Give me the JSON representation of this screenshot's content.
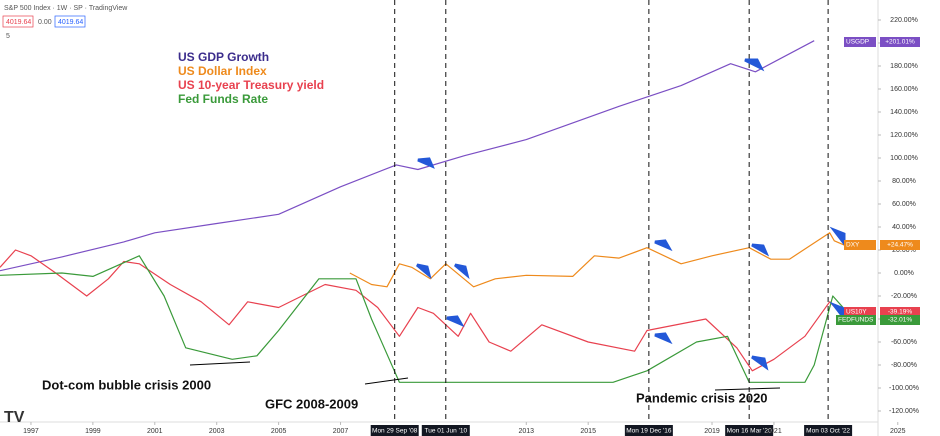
{
  "header": {
    "title": "S&P 500 Index · 1W · SP · TradingView",
    "price_a": "4019.64",
    "change": "0.00",
    "price_b": "4019.64",
    "count": "5"
  },
  "chart_data": {
    "type": "line",
    "series": [
      {
        "name": "US GDP Growth",
        "ticker": "USGDP",
        "badge": "+201.01%",
        "color": "#7b4fc4",
        "legend_color": "#3b2c8c",
        "x": [
          1996,
          1998,
          2000,
          2001,
          2003,
          2005,
          2007,
          2008.8,
          2009.5,
          2011,
          2013,
          2016,
          2018,
          2019.6,
          2020.4,
          2022.3
        ],
        "values": [
          2,
          14,
          27,
          35,
          43,
          51,
          75,
          94,
          90,
          102,
          116,
          145,
          163,
          182,
          175,
          202
        ]
      },
      {
        "name": "US Dollar Index",
        "ticker": "DXY",
        "badge": "+24.47%",
        "color": "#ee8a1c",
        "legend_color": "#ee8a1c",
        "x": [
          2007.3,
          2008.0,
          2008.5,
          2008.9,
          2009.3,
          2009.9,
          2010.4,
          2011.3,
          2012,
          2013,
          2014.5,
          2015.2,
          2016,
          2016.9,
          2018,
          2019,
          2020.2,
          2020.9,
          2021.5,
          2022.8,
          2022.95,
          2023.3
        ],
        "values": [
          0,
          -10,
          -12,
          8,
          5,
          -5,
          8,
          -12,
          -5,
          -2,
          -3,
          15,
          13,
          22,
          8,
          15,
          22,
          12,
          12,
          35,
          28,
          24
        ]
      },
      {
        "name": "US 10-year Treasury yield",
        "ticker": "US10Y",
        "badge": "-39.19%",
        "color": "#e8414f",
        "legend_color": "#e8414f",
        "x": [
          1996,
          1996.5,
          1997,
          1997.8,
          1998.8,
          1999.5,
          2000,
          2000.5,
          2001.5,
          2002.5,
          2003.4,
          2004,
          2005,
          2006.5,
          2007.5,
          2008.2,
          2008.9,
          2009.5,
          2010,
          2010.8,
          2011.2,
          2011.8,
          2012.5,
          2013.5,
          2015,
          2016.5,
          2016.9,
          2018.8,
          2019.8,
          2020.3,
          2021,
          2021.5,
          2022,
          2022.8,
          2023.3
        ],
        "values": [
          5,
          20,
          15,
          0,
          -20,
          -5,
          10,
          8,
          -10,
          -25,
          -45,
          -25,
          -30,
          -10,
          -15,
          -30,
          -55,
          -30,
          -35,
          -55,
          -35,
          -60,
          -68,
          -45,
          -60,
          -68,
          -50,
          -40,
          -65,
          -85,
          -75,
          -65,
          -55,
          -25,
          -39
        ]
      },
      {
        "name": "Fed Funds Rate",
        "ticker": "FEDFUNDS",
        "badge": "-32.01%",
        "color": "#3a9a3a",
        "legend_color": "#3a9a3a",
        "x": [
          1996,
          1998,
          1999,
          2000.5,
          2001.3,
          2002,
          2003.5,
          2004.3,
          2005,
          2006.3,
          2007.5,
          2008,
          2008.9,
          2015.8,
          2016.9,
          2018.5,
          2019.5,
          2020.2,
          2022,
          2022.3,
          2022.9,
          2023.3
        ],
        "values": [
          -2,
          0,
          -3,
          15,
          -20,
          -65,
          -75,
          -72,
          -50,
          -5,
          -5,
          -40,
          -95,
          -95,
          -85,
          -60,
          -55,
          -95,
          -95,
          -80,
          -20,
          -32
        ]
      }
    ],
    "events": [
      {
        "x": 2008.75,
        "label": "Mon 29 Sep '08"
      },
      {
        "x": 2010.4,
        "label": "Tue 01 Jun '10"
      },
      {
        "x": 2016.96,
        "label": "Mon 19 Dec '16"
      },
      {
        "x": 2020.2,
        "label": "Mon 16 Mar '20"
      },
      {
        "x": 2022.75,
        "label": "Mon 03 Oct '22"
      }
    ],
    "annotations": [
      "Dot-com bubble crisis 2000",
      "GFC 2008-2009",
      "Pandemic crisis 2020"
    ],
    "xlim": [
      1996,
      2024.2
    ],
    "xticks": [
      1997,
      1999,
      2001,
      2003,
      2005,
      2007,
      2013,
      2015,
      2019,
      2021,
      2025
    ],
    "ylim": [
      -120,
      220
    ],
    "yticks": [
      {
        "value": 220,
        "label": "220.00%"
      },
      {
        "value": 200,
        "label": "200.00%"
      },
      {
        "value": 180,
        "label": "180.00%"
      },
      {
        "value": 160,
        "label": "160.00%"
      },
      {
        "value": 140,
        "label": "140.00%"
      },
      {
        "value": 120,
        "label": "120.00%"
      },
      {
        "value": 100,
        "label": "100.00%"
      },
      {
        "value": 80,
        "label": "80.00%"
      },
      {
        "value": 60,
        "label": "60.00%"
      },
      {
        "value": 40,
        "label": "40.00%"
      },
      {
        "value": 20,
        "label": "20.00%"
      },
      {
        "value": 0,
        "label": "0.00%"
      },
      {
        "value": -20,
        "label": "-20.00%"
      },
      {
        "value": -40,
        "label": "-40.00%"
      },
      {
        "value": -60,
        "label": "-60.00%"
      },
      {
        "value": -80,
        "label": "-80.00%"
      },
      {
        "value": -100,
        "label": "-100.00%"
      },
      {
        "value": -120,
        "label": "-120.00%"
      }
    ]
  }
}
